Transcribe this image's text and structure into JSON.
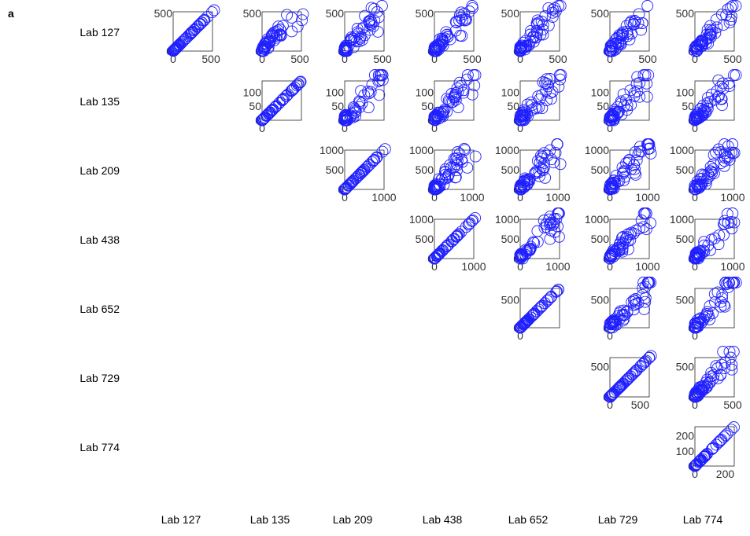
{
  "panel_label": "a",
  "colors": {
    "marker": "#2020ff",
    "axes": "#262626",
    "tick_text": "#333333"
  },
  "chart_data": {
    "type": "scatter",
    "layout": "upper-triangular scatter matrix",
    "marker": "open-circle",
    "labs": [
      "Lab 127",
      "Lab 135",
      "Lab 209",
      "Lab 438",
      "Lab 652",
      "Lab 729",
      "Lab 774"
    ],
    "axis_max": [
      520,
      140,
      1000,
      1000,
      700,
      650,
      260
    ],
    "spread": [
      [
        0,
        0.45,
        0.55,
        0.5,
        0.55,
        0.6,
        0.45
      ],
      [
        0,
        0,
        0.6,
        0.5,
        0.6,
        0.6,
        0.5
      ],
      [
        0,
        0,
        0,
        0.5,
        0.55,
        0.55,
        0.55
      ],
      [
        0,
        0,
        0,
        0,
        0.5,
        0.5,
        0.5
      ],
      [
        0,
        0,
        0,
        0,
        0,
        0.55,
        0.55
      ],
      [
        0,
        0,
        0,
        0,
        0,
        0,
        0.5
      ],
      [
        0,
        0,
        0,
        0,
        0,
        0,
        0
      ]
    ],
    "ytick_labels": [
      [
        "0",
        "500"
      ],
      [
        "0",
        "50",
        "100"
      ],
      [
        "0",
        "500",
        "1000"
      ],
      [
        "0",
        "500",
        "1000"
      ],
      [
        "0",
        "500"
      ],
      [
        "0",
        "500"
      ],
      [
        "0",
        "100",
        "200"
      ]
    ],
    "ytick_values": [
      [
        0,
        500
      ],
      [
        0,
        50,
        100
      ],
      [
        0,
        500,
        1000
      ],
      [
        0,
        500,
        1000
      ],
      [
        0,
        500
      ],
      [
        0,
        500
      ],
      [
        0,
        100,
        200
      ]
    ],
    "xtick_labels": [
      [
        "0",
        "500"
      ],
      [
        "0"
      ],
      [
        "0",
        "1000"
      ],
      [
        "0",
        "1000"
      ],
      [
        "0"
      ],
      [
        "0",
        "500"
      ],
      [
        "0",
        "200"
      ]
    ],
    "xtick_values": [
      [
        0,
        500
      ],
      [
        0
      ],
      [
        0,
        1000
      ],
      [
        0,
        1000
      ],
      [
        0
      ],
      [
        0,
        500
      ],
      [
        0,
        200
      ]
    ],
    "xtick_values_offdiag": [
      [
        0,
        500
      ],
      [
        0,
        500
      ],
      [
        0,
        1000
      ],
      [
        0,
        1000
      ],
      [
        0,
        500
      ],
      [
        0,
        500
      ],
      [
        0,
        500
      ]
    ],
    "xtick_labels_offdiag_by_row": [
      [
        "0",
        "500"
      ],
      [
        "0"
      ],
      [
        "0",
        "1000"
      ],
      [
        "0",
        "1000"
      ],
      [
        "0"
      ],
      [
        "0",
        "500"
      ],
      [
        "0",
        "200"
      ]
    ],
    "grid": false,
    "legend": "none"
  }
}
